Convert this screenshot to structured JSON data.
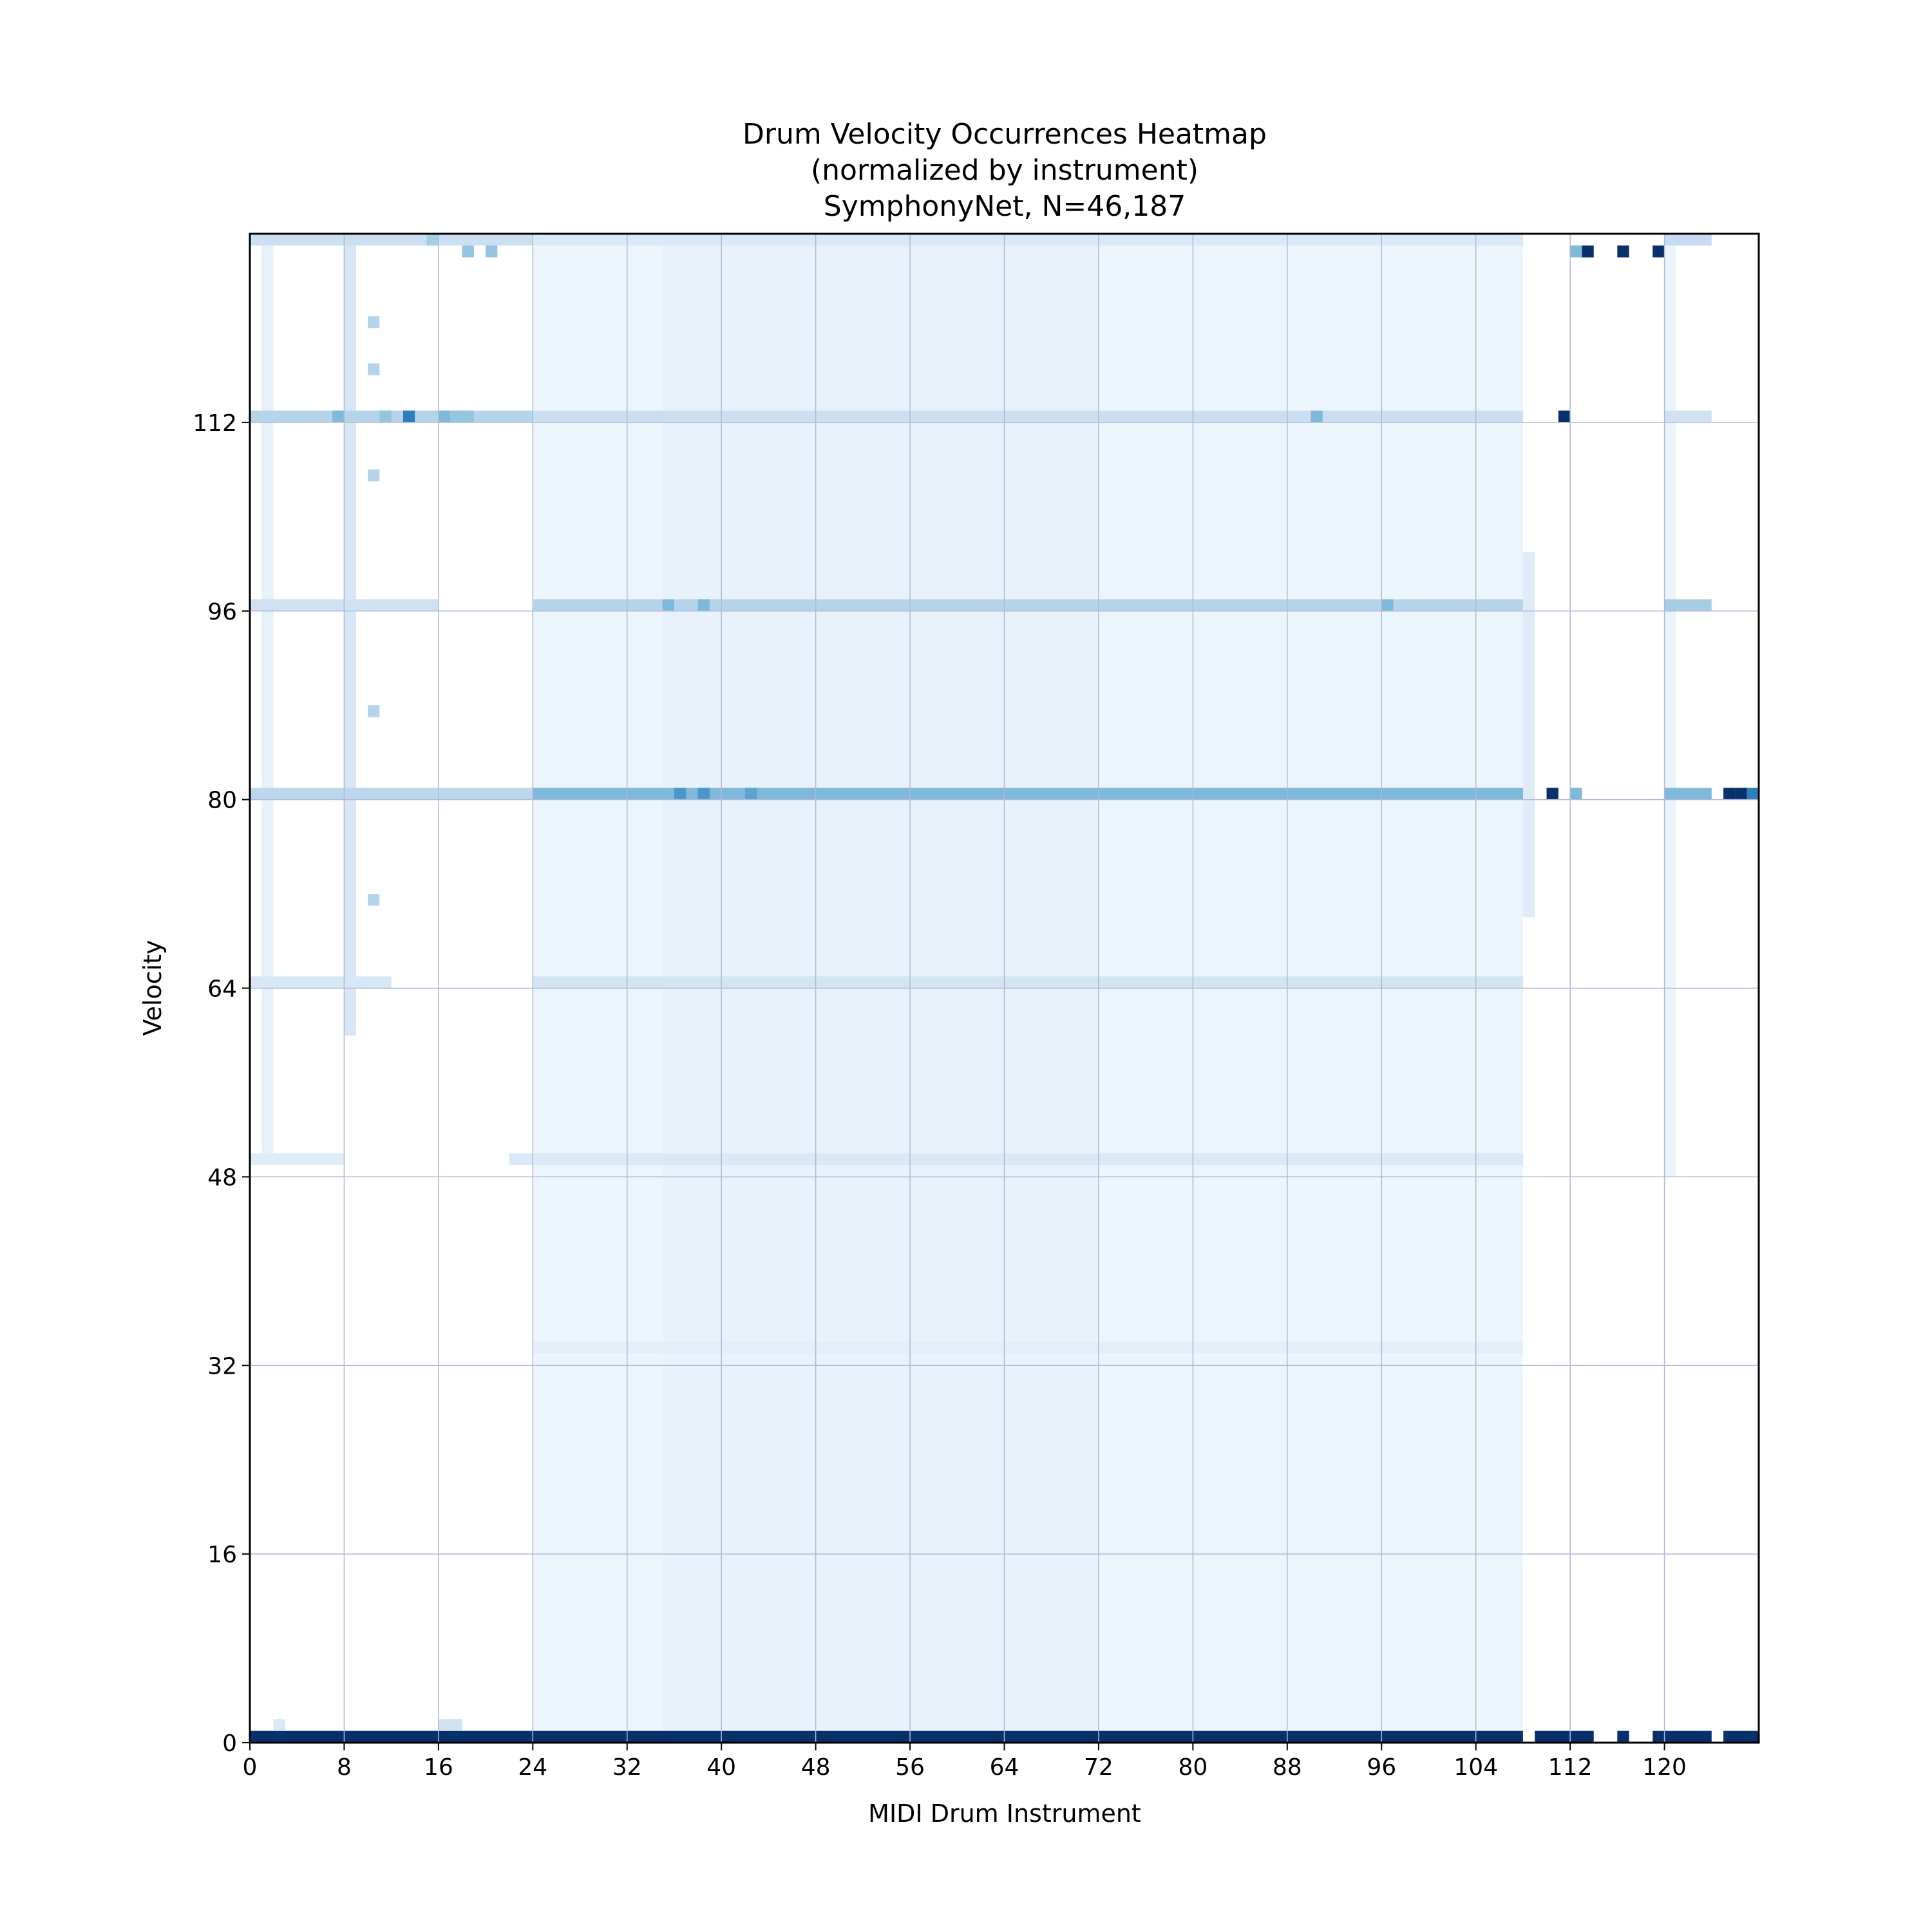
{
  "chart_data": {
    "type": "heatmap",
    "title_lines": [
      "Drum Velocity Occurrences Heatmap",
      "(normalized by instrument)",
      "SymphonyNet, N=46,187"
    ],
    "xlabel": "MIDI Drum Instrument",
    "ylabel": "Velocity",
    "xlim": [
      0,
      128
    ],
    "ylim": [
      0,
      128
    ],
    "x_ticks": [
      0,
      8,
      16,
      24,
      32,
      40,
      48,
      56,
      64,
      72,
      80,
      88,
      96,
      104,
      112,
      120
    ],
    "y_ticks": [
      0,
      16,
      32,
      48,
      64,
      80,
      96,
      112
    ],
    "grid": true,
    "colormap": "Blues",
    "colormap_stops": [
      "#f7fbff",
      "#deebf7",
      "#c6dbef",
      "#9ecae1",
      "#6baed6",
      "#4292c6",
      "#2171b5",
      "#08519c",
      "#08306b"
    ],
    "grid_color": "#b0b8d8",
    "rows": [
      {
        "velocity": 0,
        "label": "velocity 0",
        "cols": [
          0,
          108
        ],
        "value": 1.0
      },
      {
        "velocity": 0,
        "label": "velocity 0",
        "cols": [
          109,
          114
        ],
        "value": 1.0
      },
      {
        "velocity": 0,
        "label": "velocity 0",
        "cols": [
          116,
          117
        ],
        "value": 1.0
      },
      {
        "velocity": 0,
        "label": "velocity 0",
        "cols": [
          119,
          124
        ],
        "value": 1.0
      },
      {
        "velocity": 0,
        "label": "velocity 0",
        "cols": [
          125,
          128
        ],
        "value": 1.0
      },
      {
        "velocity": 33,
        "label": "velocity 33",
        "cols": [
          24,
          108
        ],
        "value": 0.1
      },
      {
        "velocity": 49,
        "label": "velocity 49",
        "cols": [
          22,
          108
        ],
        "value": 0.14
      },
      {
        "velocity": 49,
        "label": "velocity 49",
        "cols": [
          0,
          8
        ],
        "value": 0.12
      },
      {
        "velocity": 64,
        "label": "velocity 64",
        "cols": [
          24,
          108
        ],
        "value": 0.18
      },
      {
        "velocity": 64,
        "label": "velocity 64",
        "cols": [
          0,
          12
        ],
        "value": 0.16
      },
      {
        "velocity": 80,
        "label": "velocity 80",
        "cols": [
          0,
          24
        ],
        "value": 0.28
      },
      {
        "velocity": 80,
        "label": "velocity 80",
        "cols": [
          24,
          108
        ],
        "value": 0.45
      },
      {
        "velocity": 80,
        "label": "velocity 80",
        "cols": [
          120,
          124
        ],
        "value": 0.45
      },
      {
        "velocity": 96,
        "label": "velocity 96",
        "cols": [
          24,
          108
        ],
        "value": 0.3
      },
      {
        "velocity": 96,
        "label": "velocity 96",
        "cols": [
          0,
          16
        ],
        "value": 0.2
      },
      {
        "velocity": 96,
        "label": "velocity 96",
        "cols": [
          120,
          124
        ],
        "value": 0.35
      },
      {
        "velocity": 112,
        "label": "velocity 112",
        "cols": [
          0,
          24
        ],
        "value": 0.3
      },
      {
        "velocity": 112,
        "label": "velocity 112",
        "cols": [
          24,
          108
        ],
        "value": 0.22
      },
      {
        "velocity": 112,
        "label": "velocity 112",
        "cols": [
          120,
          124
        ],
        "value": 0.2
      },
      {
        "velocity": 127,
        "label": "velocity 127",
        "cols": [
          0,
          24
        ],
        "value": 0.22
      },
      {
        "velocity": 127,
        "label": "velocity 127",
        "cols": [
          24,
          108
        ],
        "value": 0.14
      },
      {
        "velocity": 127,
        "label": "velocity 127",
        "cols": [
          120,
          124
        ],
        "value": 0.25
      }
    ],
    "columns": [
      {
        "label": "instrument band 24-108",
        "cols": [
          24,
          108
        ],
        "velocity_range": [
          1,
          127
        ],
        "value": 0.05
      },
      {
        "label": "instrument band 35-72",
        "cols": [
          35,
          72
        ],
        "velocity_range": [
          1,
          127
        ],
        "value": 0.07
      },
      {
        "label": "instrument 8",
        "cols": [
          8,
          9
        ],
        "velocity_range": [
          60,
          127
        ],
        "value": 0.16
      },
      {
        "label": "instrument 1",
        "cols": [
          1,
          2
        ],
        "velocity_range": [
          50,
          127
        ],
        "value": 0.08
      },
      {
        "label": "instrument 108",
        "cols": [
          108,
          109
        ],
        "velocity_range": [
          70,
          100
        ],
        "value": 0.12
      },
      {
        "label": "instrument 120",
        "cols": [
          120,
          121
        ],
        "velocity_range": [
          48,
          127
        ],
        "value": 0.06
      }
    ],
    "cells": [
      {
        "instrument": 110,
        "velocity": 80,
        "value": 1.0
      },
      {
        "instrument": 125,
        "velocity": 80,
        "value": 1.0
      },
      {
        "instrument": 126,
        "velocity": 80,
        "value": 1.0
      },
      {
        "instrument": 127,
        "velocity": 80,
        "value": 0.7
      },
      {
        "instrument": 112,
        "velocity": 80,
        "value": 0.45
      },
      {
        "instrument": 111,
        "velocity": 112,
        "value": 1.0
      },
      {
        "instrument": 113,
        "velocity": 126,
        "value": 1.0
      },
      {
        "instrument": 116,
        "velocity": 126,
        "value": 1.0
      },
      {
        "instrument": 119,
        "velocity": 126,
        "value": 1.0
      },
      {
        "instrument": 112,
        "velocity": 126,
        "value": 0.45
      },
      {
        "instrument": 13,
        "velocity": 112,
        "value": 0.7
      },
      {
        "instrument": 16,
        "velocity": 112,
        "value": 0.45
      },
      {
        "instrument": 17,
        "velocity": 112,
        "value": 0.4
      },
      {
        "instrument": 18,
        "velocity": 112,
        "value": 0.4
      },
      {
        "instrument": 7,
        "velocity": 112,
        "value": 0.45
      },
      {
        "instrument": 11,
        "velocity": 112,
        "value": 0.4
      },
      {
        "instrument": 36,
        "velocity": 80,
        "value": 0.6
      },
      {
        "instrument": 38,
        "velocity": 80,
        "value": 0.6
      },
      {
        "instrument": 42,
        "velocity": 80,
        "value": 0.55
      },
      {
        "instrument": 35,
        "velocity": 96,
        "value": 0.45
      },
      {
        "instrument": 38,
        "velocity": 96,
        "value": 0.45
      },
      {
        "instrument": 96,
        "velocity": 96,
        "value": 0.45
      },
      {
        "instrument": 90,
        "velocity": 112,
        "value": 0.45
      },
      {
        "instrument": 18,
        "velocity": 126,
        "value": 0.4
      },
      {
        "instrument": 20,
        "velocity": 126,
        "value": 0.4
      },
      {
        "instrument": 15,
        "velocity": 127,
        "value": 0.35
      },
      {
        "instrument": 10,
        "velocity": 107,
        "value": 0.3
      },
      {
        "instrument": 10,
        "velocity": 87,
        "value": 0.3
      },
      {
        "instrument": 10,
        "velocity": 71,
        "value": 0.3
      },
      {
        "instrument": 10,
        "velocity": 120,
        "value": 0.3
      },
      {
        "instrument": 10,
        "velocity": 116,
        "value": 0.3
      },
      {
        "instrument": 2,
        "velocity": 1,
        "value": 0.15
      },
      {
        "instrument": 16,
        "velocity": 1,
        "value": 0.2
      },
      {
        "instrument": 17,
        "velocity": 1,
        "value": 0.2
      }
    ]
  }
}
